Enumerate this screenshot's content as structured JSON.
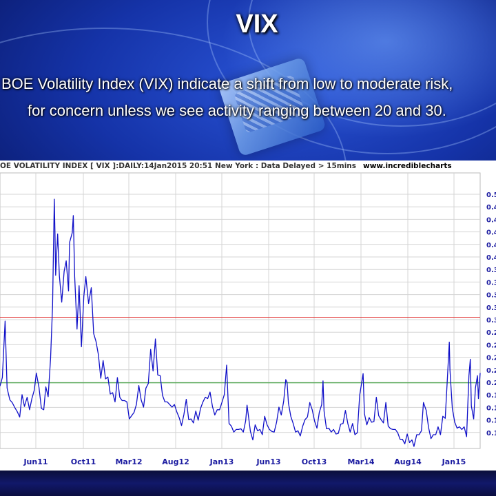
{
  "slide": {
    "title": "VIX",
    "caption_line1": "BOE Volatility Index (VIX) indicate a shift from low to moderate risk,",
    "caption_line2": "for concern unless we see activity ranging between 20 and 30."
  },
  "chart_header": {
    "label": "OE VOLATILITY INDEX [ VIX ]:DAILY:14Jan2015 20:51 New York : Data Delayed > 15mins",
    "source": "www.incrediblecharts"
  },
  "colors": {
    "line": "#1010c8",
    "upper_ref": "#e03030",
    "lower_ref": "#2a9a2a",
    "grid": "#d4d4d4",
    "tick_text": "#1a1aa0"
  },
  "chart_data": {
    "type": "line",
    "title": "",
    "xlabel": "",
    "ylabel": "",
    "grid": true,
    "x_ticks": [
      "Jun11",
      "Oct11",
      "Mar12",
      "Aug12",
      "Jan13",
      "Jun13",
      "Oct13",
      "Mar14",
      "Aug14",
      "Jan15"
    ],
    "y_tick_labels": [
      "0.5",
      "0.4",
      "0.4",
      "0.4",
      "0.4",
      "0.4",
      "0.3",
      "0.3",
      "0.3",
      "0.3",
      "0.3",
      "0.2",
      "0.2",
      "0.2",
      "0.2",
      "0.2",
      "0.1",
      "0.1",
      "0.1",
      "0.1"
    ],
    "ylim": [
      10,
      52
    ],
    "reference_lines": [
      {
        "value": 30,
        "color": "upper"
      },
      {
        "value": 20,
        "color": "lower"
      }
    ],
    "x_range": [
      "2011-03-01",
      "2015-01-14"
    ],
    "series": [
      {
        "values": [
          [
            "2011-03-01",
            19.5
          ],
          [
            "2011-03-08",
            20.8
          ],
          [
            "2011-03-16",
            29.4
          ],
          [
            "2011-03-22",
            19.2
          ],
          [
            "2011-03-30",
            17.4
          ],
          [
            "2011-04-06",
            17.0
          ],
          [
            "2011-04-14",
            16.2
          ],
          [
            "2011-04-21",
            15.6
          ],
          [
            "2011-04-28",
            14.8
          ],
          [
            "2011-05-05",
            18.2
          ],
          [
            "2011-05-12",
            16.4
          ],
          [
            "2011-05-20",
            17.8
          ],
          [
            "2011-05-27",
            15.9
          ],
          [
            "2011-06-03",
            17.6
          ],
          [
            "2011-06-10",
            18.9
          ],
          [
            "2011-06-16",
            21.5
          ],
          [
            "2011-06-24",
            19.3
          ],
          [
            "2011-07-01",
            16.1
          ],
          [
            "2011-07-08",
            15.9
          ],
          [
            "2011-07-14",
            19.4
          ],
          [
            "2011-07-21",
            17.9
          ],
          [
            "2011-07-28",
            23.7
          ],
          [
            "2011-08-03",
            31.7
          ],
          [
            "2011-08-08",
            48.0
          ],
          [
            "2011-08-10",
            42.9
          ],
          [
            "2011-08-12",
            36.4
          ],
          [
            "2011-08-18",
            42.7
          ],
          [
            "2011-08-23",
            36.3
          ],
          [
            "2011-08-30",
            32.3
          ],
          [
            "2011-09-06",
            37.0
          ],
          [
            "2011-09-12",
            38.6
          ],
          [
            "2011-09-19",
            34.0
          ],
          [
            "2011-09-22",
            41.4
          ],
          [
            "2011-09-30",
            42.9
          ],
          [
            "2011-10-03",
            45.5
          ],
          [
            "2011-10-07",
            36.2
          ],
          [
            "2011-10-14",
            28.2
          ],
          [
            "2011-10-20",
            34.8
          ],
          [
            "2011-10-27",
            25.5
          ],
          [
            "2011-11-03",
            33.2
          ],
          [
            "2011-11-09",
            36.2
          ],
          [
            "2011-11-17",
            32.1
          ],
          [
            "2011-11-25",
            34.5
          ],
          [
            "2011-12-02",
            27.5
          ],
          [
            "2011-12-09",
            26.3
          ],
          [
            "2011-12-16",
            24.3
          ],
          [
            "2011-12-23",
            20.7
          ],
          [
            "2011-12-30",
            23.4
          ],
          [
            "2012-01-06",
            20.6
          ],
          [
            "2012-01-13",
            20.9
          ],
          [
            "2012-01-20",
            18.3
          ],
          [
            "2012-01-27",
            18.5
          ],
          [
            "2012-02-03",
            17.1
          ],
          [
            "2012-02-10",
            20.8
          ],
          [
            "2012-02-17",
            17.8
          ],
          [
            "2012-02-24",
            17.3
          ],
          [
            "2012-03-02",
            17.3
          ],
          [
            "2012-03-09",
            17.1
          ],
          [
            "2012-03-16",
            14.5
          ],
          [
            "2012-03-23",
            15.0
          ],
          [
            "2012-03-30",
            15.5
          ],
          [
            "2012-04-06",
            16.7
          ],
          [
            "2012-04-13",
            19.6
          ],
          [
            "2012-04-20",
            17.4
          ],
          [
            "2012-04-27",
            16.3
          ],
          [
            "2012-05-04",
            19.2
          ],
          [
            "2012-05-11",
            19.9
          ],
          [
            "2012-05-18",
            25.1
          ],
          [
            "2012-05-25",
            21.8
          ],
          [
            "2012-06-01",
            26.7
          ],
          [
            "2012-06-08",
            21.2
          ],
          [
            "2012-06-15",
            21.1
          ],
          [
            "2012-06-22",
            18.1
          ],
          [
            "2012-06-29",
            17.1
          ],
          [
            "2012-07-06",
            17.1
          ],
          [
            "2012-07-13",
            16.7
          ],
          [
            "2012-07-20",
            16.3
          ],
          [
            "2012-07-27",
            16.7
          ],
          [
            "2012-08-03",
            15.6
          ],
          [
            "2012-08-10",
            14.7
          ],
          [
            "2012-08-17",
            13.5
          ],
          [
            "2012-08-24",
            15.2
          ],
          [
            "2012-08-31",
            17.5
          ],
          [
            "2012-09-07",
            14.4
          ],
          [
            "2012-09-14",
            14.5
          ],
          [
            "2012-09-21",
            13.9
          ],
          [
            "2012-09-28",
            15.7
          ],
          [
            "2012-10-05",
            14.3
          ],
          [
            "2012-10-12",
            16.1
          ],
          [
            "2012-10-19",
            17.1
          ],
          [
            "2012-10-26",
            17.8
          ],
          [
            "2012-11-02",
            17.6
          ],
          [
            "2012-11-09",
            18.6
          ],
          [
            "2012-11-16",
            16.4
          ],
          [
            "2012-11-23",
            15.1
          ],
          [
            "2012-11-30",
            15.9
          ],
          [
            "2012-12-07",
            15.9
          ],
          [
            "2012-12-14",
            17.0
          ],
          [
            "2012-12-21",
            18.2
          ],
          [
            "2012-12-28",
            22.7
          ],
          [
            "2013-01-04",
            13.8
          ],
          [
            "2013-01-11",
            13.4
          ],
          [
            "2013-01-18",
            12.5
          ],
          [
            "2013-01-25",
            12.9
          ],
          [
            "2013-02-01",
            12.9
          ],
          [
            "2013-02-08",
            13.0
          ],
          [
            "2013-02-15",
            12.5
          ],
          [
            "2013-02-22",
            14.2
          ],
          [
            "2013-02-26",
            16.6
          ],
          [
            "2013-03-01",
            15.4
          ],
          [
            "2013-03-08",
            12.6
          ],
          [
            "2013-03-15",
            11.3
          ],
          [
            "2013-03-22",
            13.6
          ],
          [
            "2013-03-29",
            12.7
          ],
          [
            "2013-04-05",
            12.9
          ],
          [
            "2013-04-12",
            12.1
          ],
          [
            "2013-04-19",
            14.9
          ],
          [
            "2013-04-26",
            13.6
          ],
          [
            "2013-05-03",
            12.9
          ],
          [
            "2013-05-10",
            12.6
          ],
          [
            "2013-05-17",
            12.5
          ],
          [
            "2013-05-24",
            14.0
          ],
          [
            "2013-05-31",
            16.3
          ],
          [
            "2013-06-07",
            15.1
          ],
          [
            "2013-06-14",
            17.2
          ],
          [
            "2013-06-20",
            20.5
          ],
          [
            "2013-06-24",
            20.1
          ],
          [
            "2013-06-28",
            16.9
          ],
          [
            "2013-07-05",
            14.9
          ],
          [
            "2013-07-12",
            13.8
          ],
          [
            "2013-07-19",
            12.5
          ],
          [
            "2013-07-26",
            12.7
          ],
          [
            "2013-08-02",
            11.9
          ],
          [
            "2013-08-09",
            13.4
          ],
          [
            "2013-08-16",
            14.4
          ],
          [
            "2013-08-23",
            14.8
          ],
          [
            "2013-08-30",
            17.0
          ],
          [
            "2013-09-06",
            15.9
          ],
          [
            "2013-09-13",
            14.2
          ],
          [
            "2013-09-20",
            13.1
          ],
          [
            "2013-09-27",
            15.5
          ],
          [
            "2013-10-04",
            16.7
          ],
          [
            "2013-10-08",
            20.3
          ],
          [
            "2013-10-11",
            15.7
          ],
          [
            "2013-10-18",
            13.0
          ],
          [
            "2013-10-25",
            13.1
          ],
          [
            "2013-11-01",
            12.5
          ],
          [
            "2013-11-08",
            12.9
          ],
          [
            "2013-11-15",
            12.2
          ],
          [
            "2013-11-22",
            12.3
          ],
          [
            "2013-11-29",
            13.7
          ],
          [
            "2013-12-06",
            13.8
          ],
          [
            "2013-12-13",
            15.8
          ],
          [
            "2013-12-20",
            13.8
          ],
          [
            "2013-12-27",
            12.5
          ],
          [
            "2014-01-03",
            13.8
          ],
          [
            "2014-01-10",
            12.1
          ],
          [
            "2014-01-17",
            12.4
          ],
          [
            "2014-01-24",
            18.1
          ],
          [
            "2014-02-03",
            21.4
          ],
          [
            "2014-02-07",
            15.3
          ],
          [
            "2014-02-14",
            13.6
          ],
          [
            "2014-02-21",
            14.7
          ],
          [
            "2014-02-28",
            14.0
          ],
          [
            "2014-03-07",
            14.1
          ],
          [
            "2014-03-14",
            17.8
          ],
          [
            "2014-03-21",
            15.0
          ],
          [
            "2014-03-28",
            14.4
          ],
          [
            "2014-04-04",
            13.9
          ],
          [
            "2014-04-11",
            17.0
          ],
          [
            "2014-04-18",
            13.4
          ],
          [
            "2014-04-25",
            13.0
          ],
          [
            "2014-05-02",
            12.9
          ],
          [
            "2014-05-09",
            12.9
          ],
          [
            "2014-05-16",
            12.4
          ],
          [
            "2014-05-23",
            11.4
          ],
          [
            "2014-05-30",
            11.4
          ],
          [
            "2014-06-06",
            10.7
          ],
          [
            "2014-06-13",
            12.2
          ],
          [
            "2014-06-20",
            10.9
          ],
          [
            "2014-06-27",
            11.3
          ],
          [
            "2014-07-03",
            10.3
          ],
          [
            "2014-07-11",
            12.1
          ],
          [
            "2014-07-18",
            12.1
          ],
          [
            "2014-07-25",
            12.7
          ],
          [
            "2014-07-31",
            17.0
          ],
          [
            "2014-08-08",
            15.8
          ],
          [
            "2014-08-15",
            13.2
          ],
          [
            "2014-08-22",
            11.5
          ],
          [
            "2014-08-29",
            12.1
          ],
          [
            "2014-09-05",
            12.1
          ],
          [
            "2014-09-12",
            13.3
          ],
          [
            "2014-09-19",
            12.1
          ],
          [
            "2014-09-26",
            14.9
          ],
          [
            "2014-10-03",
            14.6
          ],
          [
            "2014-10-10",
            21.2
          ],
          [
            "2014-10-15",
            26.2
          ],
          [
            "2014-10-17",
            21.9
          ],
          [
            "2014-10-24",
            16.1
          ],
          [
            "2014-10-31",
            14.0
          ],
          [
            "2014-11-07",
            13.1
          ],
          [
            "2014-11-14",
            13.3
          ],
          [
            "2014-11-21",
            12.9
          ],
          [
            "2014-11-28",
            13.3
          ],
          [
            "2014-12-05",
            11.8
          ],
          [
            "2014-12-12",
            21.1
          ],
          [
            "2014-12-16",
            23.6
          ],
          [
            "2014-12-19",
            16.5
          ],
          [
            "2014-12-26",
            14.5
          ],
          [
            "2014-12-31",
            19.2
          ],
          [
            "2015-01-06",
            21.1
          ],
          [
            "2015-01-09",
            17.6
          ],
          [
            "2015-01-14",
            21.5
          ]
        ]
      }
    ]
  }
}
